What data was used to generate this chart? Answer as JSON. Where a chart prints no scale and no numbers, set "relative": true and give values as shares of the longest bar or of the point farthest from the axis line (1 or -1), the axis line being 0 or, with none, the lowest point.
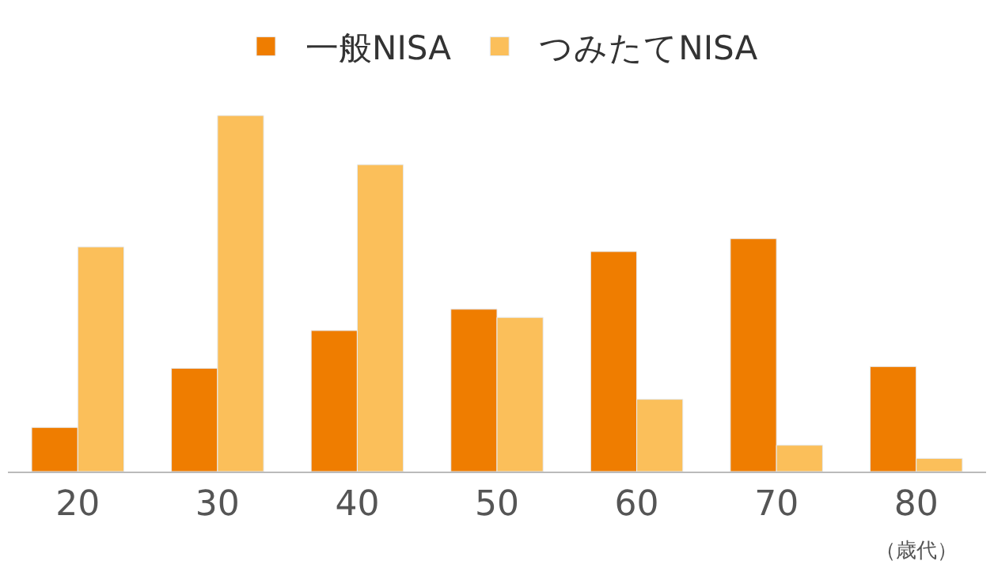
{
  "chart_data": {
    "type": "bar",
    "relative": true,
    "categories": [
      "20",
      "30",
      "40",
      "50",
      "60",
      "70",
      "80"
    ],
    "xlabel": "（歳代）",
    "legend": "top",
    "series": [
      {
        "name": "一般NISA",
        "color": "#ef7d00",
        "values": [
          0.124,
          0.29,
          0.396,
          0.456,
          0.618,
          0.654,
          0.295
        ]
      },
      {
        "name": "つみたてNISA",
        "color": "#fbbf5a",
        "values": [
          0.631,
          1,
          0.862,
          0.433,
          0.203,
          0.074,
          0.037
        ]
      }
    ]
  }
}
